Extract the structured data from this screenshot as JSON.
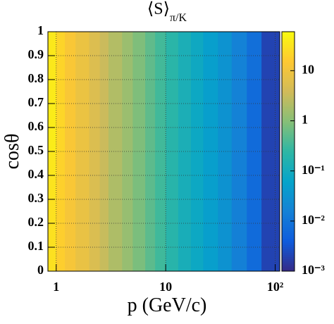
{
  "chart_data": {
    "type": "heatmap",
    "title": "⟨S⟩",
    "title_subscript": "π/K",
    "x_label": "p (GeV/c)",
    "y_label": "cosθ",
    "x_log": true,
    "z_log": true,
    "grid": true,
    "xlim": [
      0.84,
      110
    ],
    "xticks": [
      1,
      10,
      {
        "value": 100,
        "label": "10²"
      }
    ],
    "ylim": [
      0,
      1
    ],
    "yticks": [
      0,
      0.1,
      0.2,
      0.3,
      0.4,
      0.5,
      0.6,
      0.7,
      0.8,
      0.9,
      1
    ],
    "zlim": [
      0.001,
      60
    ],
    "zticks": [
      {
        "value": 0.001,
        "label": "10⁻³"
      },
      {
        "value": 0.01,
        "label": "10⁻²"
      },
      {
        "value": 0.1,
        "label": "10⁻¹"
      },
      1,
      10
    ],
    "colorscale": [
      "#352a87",
      "#0f5cdd",
      "#1481d6",
      "#06a4ca",
      "#2eb7a4",
      "#87bf77",
      "#d1bb59",
      "#fec832",
      "#f9fb0e"
    ],
    "x_bins": [
      0.84,
      1,
      1.2,
      1.5,
      2,
      2.5,
      3,
      4,
      5,
      6.5,
      8,
      10,
      13,
      17,
      22,
      30,
      40,
      55,
      75,
      110
    ],
    "y_bins": [
      0,
      0.1,
      0.2,
      0.3,
      0.4,
      0.5,
      0.6,
      0.7,
      0.8,
      0.9,
      1
    ],
    "z": [
      [
        30,
        18,
        12,
        8,
        5,
        3.2,
        2,
        1.3,
        0.8,
        0.5,
        0.32,
        0.2,
        0.12,
        0.08,
        0.05,
        0.03,
        0.015,
        0.007,
        0.002
      ],
      [
        30,
        18,
        12,
        8,
        5,
        3.2,
        2,
        1.3,
        0.8,
        0.5,
        0.32,
        0.2,
        0.12,
        0.08,
        0.05,
        0.03,
        0.015,
        0.007,
        0.002
      ],
      [
        30,
        19,
        12,
        8,
        5,
        3.2,
        2,
        1.3,
        0.8,
        0.5,
        0.32,
        0.2,
        0.12,
        0.08,
        0.05,
        0.03,
        0.015,
        0.007,
        0.002
      ],
      [
        32,
        19,
        13,
        8,
        5,
        3.3,
        2,
        1.3,
        0.8,
        0.5,
        0.32,
        0.2,
        0.12,
        0.08,
        0.05,
        0.03,
        0.015,
        0.007,
        0.002
      ],
      [
        35,
        20,
        13,
        8,
        5.2,
        3.3,
        2.1,
        1.3,
        0.8,
        0.5,
        0.33,
        0.2,
        0.12,
        0.08,
        0.05,
        0.03,
        0.015,
        0.007,
        0.002
      ],
      [
        40,
        22,
        13,
        8.5,
        5.2,
        3.4,
        2.1,
        1.4,
        0.85,
        0.52,
        0.33,
        0.2,
        0.13,
        0.08,
        0.05,
        0.03,
        0.016,
        0.007,
        0.002
      ],
      [
        40,
        22,
        13,
        8.5,
        5.3,
        3.4,
        2.1,
        1.4,
        0.85,
        0.52,
        0.33,
        0.21,
        0.13,
        0.08,
        0.05,
        0.03,
        0.016,
        0.007,
        0.002
      ],
      [
        38,
        21,
        13,
        8.5,
        5.3,
        3.4,
        2.1,
        1.4,
        0.85,
        0.52,
        0.33,
        0.21,
        0.13,
        0.08,
        0.05,
        0.03,
        0.016,
        0.007,
        0.002
      ],
      [
        36,
        21,
        13,
        8.5,
        5.3,
        3.4,
        2.2,
        1.4,
        0.85,
        0.53,
        0.34,
        0.21,
        0.13,
        0.085,
        0.05,
        0.032,
        0.016,
        0.008,
        0.002
      ],
      [
        36,
        21,
        13,
        8.5,
        5.3,
        3.4,
        2.2,
        1.4,
        0.85,
        0.53,
        0.34,
        0.21,
        0.13,
        0.085,
        0.05,
        0.032,
        0.016,
        0.008,
        0.002
      ]
    ]
  }
}
